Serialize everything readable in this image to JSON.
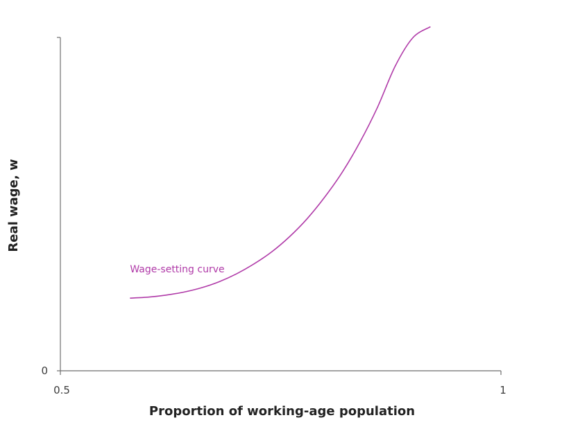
{
  "chart_data": {
    "type": "line",
    "title": "",
    "xlabel": "Proportion of working-age population",
    "ylabel": "Real wage, w",
    "xlim": [
      0.5,
      1
    ],
    "ylim": [
      0,
      100
    ],
    "x_ticks": [
      {
        "value": 0.5,
        "label": "0.5"
      },
      {
        "value": 1,
        "label": "1"
      }
    ],
    "y_ticks": [
      {
        "value": 0,
        "label": "0"
      }
    ],
    "grid": false,
    "legend": "none",
    "annotations": [
      {
        "text": "Wage-setting curve",
        "x": 0.579,
        "y": 29.5,
        "color": "#b03aa8"
      }
    ],
    "series": [
      {
        "name": "Wage-setting curve",
        "color": "#b03aa8",
        "x": [
          0.579,
          0.6,
          0.62,
          0.64,
          0.66,
          0.68,
          0.7,
          0.72,
          0.74,
          0.76,
          0.78,
          0.8,
          0.82,
          0.84,
          0.86,
          0.88,
          0.9,
          0.92
        ],
        "y": [
          21.8,
          22.1,
          22.7,
          23.6,
          24.9,
          26.7,
          29.1,
          32.1,
          35.7,
          40.2,
          45.6,
          52.1,
          59.6,
          68.6,
          79.1,
          91.4,
          99.9,
          103.2
        ]
      }
    ]
  }
}
